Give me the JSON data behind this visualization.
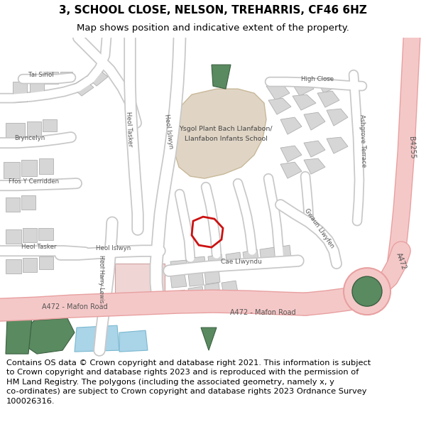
{
  "title": "3, SCHOOL CLOSE, NELSON, TREHARRIS, CF46 6HZ",
  "subtitle": "Map shows position and indicative extent of the property.",
  "footer": "Contains OS data © Crown copyright and database right 2021. This information is subject\nto Crown copyright and database rights 2023 and is reproduced with the permission of\nHM Land Registry. The polygons (including the associated geometry, namely x, y\nco-ordinates) are subject to Crown copyright and database rights 2023 Ordnance Survey\n100026316.",
  "bg_color": "#ffffff",
  "map_bg": "#f2f0eb",
  "road_major_color": "#f5c8c8",
  "road_major_edge": "#e8a0a0",
  "road_minor_color": "#ffffff",
  "road_minor_edge": "#c8c8c8",
  "building_fill": "#d6d6d6",
  "building_edge": "#b0b0b0",
  "school_fill": "#e0d5c5",
  "school_edge": "#c8b898",
  "green_fill": "#5a8a60",
  "green_edge": "#3a6040",
  "water_fill": "#aad4e8",
  "water_edge": "#7ab8d0",
  "plot_color": "#cc1111",
  "text_color": "#333333",
  "title_fs": 11,
  "subtitle_fs": 9.5,
  "footer_fs": 8.2,
  "label_fs": 6.8,
  "label_sm": 6.2
}
